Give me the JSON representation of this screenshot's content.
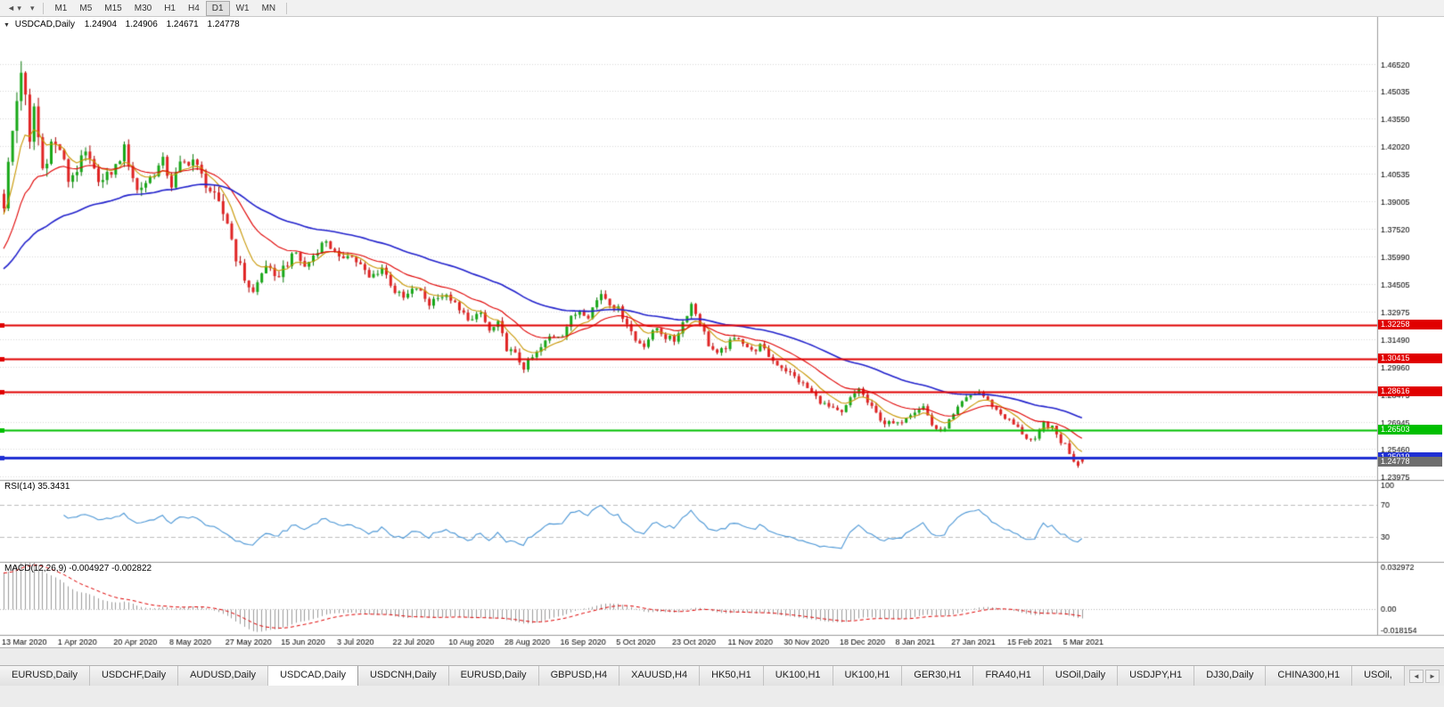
{
  "toolbar": {
    "icon1_label": "◄ ▾",
    "icon2_label": "▾",
    "timeframes": [
      "M1",
      "M5",
      "M15",
      "M30",
      "H1",
      "H4",
      "D1",
      "W1",
      "MN"
    ],
    "active_timeframe": "D1"
  },
  "chart_header": {
    "collapse_glyph": "▼",
    "symbol": "USDCAD,Daily",
    "ohlc": "1.24904 1.24906 1.24671 1.24778"
  },
  "rsi_header": "RSI(14) 35.3431",
  "macd_header": "MACD(12,26,9) -0.004927 -0.002822",
  "chart_data": {
    "type": "candlestick",
    "title": "USDCAD,Daily",
    "last_close": 1.24778,
    "last_bar": {
      "open": 1.24904,
      "high": 1.24906,
      "low": 1.24671,
      "close": 1.24778
    },
    "y_ticks": [
      "1.46520",
      "1.45035",
      "1.43550",
      "1.42020",
      "1.40535",
      "1.39005",
      "1.37520",
      "1.35990",
      "1.34505",
      "1.32975",
      "1.31490",
      "1.29960",
      "1.28475",
      "1.26945",
      "1.25460",
      "1.23975"
    ],
    "x_labels": [
      "13 Mar 2020",
      "1 Apr 2020",
      "20 Apr 2020",
      "8 May 2020",
      "27 May 2020",
      "15 Jun 2020",
      "3 Jul 2020",
      "22 Jul 2020",
      "10 Aug 2020",
      "28 Aug 2020",
      "16 Sep 2020",
      "5 Oct 2020",
      "23 Oct 2020",
      "11 Nov 2020",
      "30 Nov 2020",
      "18 Dec 2020",
      "8 Jan 2021",
      "27 Jan 2021",
      "15 Feb 2021",
      "5 Mar 2021"
    ],
    "candles_per_label": 13,
    "candle_count": 252,
    "close_anchors": [
      [
        0,
        1.39
      ],
      [
        2,
        1.428
      ],
      [
        4,
        1.463
      ],
      [
        5,
        1.445
      ],
      [
        6,
        1.42
      ],
      [
        7,
        1.442
      ],
      [
        9,
        1.408
      ],
      [
        11,
        1.422
      ],
      [
        13,
        1.419
      ],
      [
        15,
        1.402
      ],
      [
        17,
        1.408
      ],
      [
        19,
        1.416
      ],
      [
        21,
        1.406
      ],
      [
        23,
        1.401
      ],
      [
        26,
        1.409
      ],
      [
        28,
        1.419
      ],
      [
        31,
        1.396
      ],
      [
        34,
        1.403
      ],
      [
        37,
        1.412
      ],
      [
        39,
        1.399
      ],
      [
        41,
        1.41
      ],
      [
        44,
        1.413
      ],
      [
        46,
        1.404
      ],
      [
        49,
        1.392
      ],
      [
        52,
        1.379
      ],
      [
        54,
        1.36
      ],
      [
        56,
        1.348
      ],
      [
        58,
        1.34
      ],
      [
        61,
        1.356
      ],
      [
        63,
        1.347
      ],
      [
        65,
        1.354
      ],
      [
        68,
        1.362
      ],
      [
        70,
        1.354
      ],
      [
        73,
        1.364
      ],
      [
        75,
        1.369
      ],
      [
        78,
        1.358
      ],
      [
        80,
        1.362
      ],
      [
        83,
        1.355
      ],
      [
        85,
        1.348
      ],
      [
        88,
        1.354
      ],
      [
        91,
        1.341
      ],
      [
        93,
        1.337
      ],
      [
        96,
        1.343
      ],
      [
        99,
        1.334
      ],
      [
        101,
        1.339
      ],
      [
        104,
        1.337
      ],
      [
        106,
        1.33
      ],
      [
        109,
        1.325
      ],
      [
        111,
        1.329
      ],
      [
        113,
        1.319
      ],
      [
        115,
        1.323
      ],
      [
        117,
        1.31
      ],
      [
        119,
        1.306
      ],
      [
        121,
        1.2995
      ],
      [
        124,
        1.307
      ],
      [
        127,
        1.316
      ],
      [
        130,
        1.318
      ],
      [
        132,
        1.326
      ],
      [
        134,
        1.331
      ],
      [
        136,
        1.328
      ],
      [
        139,
        1.34
      ],
      [
        141,
        1.335
      ],
      [
        143,
        1.331
      ],
      [
        145,
        1.324
      ],
      [
        147,
        1.314
      ],
      [
        149,
        1.312
      ],
      [
        152,
        1.321
      ],
      [
        154,
        1.316
      ],
      [
        156,
        1.314
      ],
      [
        158,
        1.324
      ],
      [
        160,
        1.334
      ],
      [
        162,
        1.324
      ],
      [
        164,
        1.312
      ],
      [
        166,
        1.306
      ],
      [
        169,
        1.313
      ],
      [
        171,
        1.316
      ],
      [
        174,
        1.308
      ],
      [
        176,
        1.311
      ],
      [
        179,
        1.303
      ],
      [
        182,
        1.298
      ],
      [
        184,
        1.294
      ],
      [
        187,
        1.288
      ],
      [
        189,
        1.283
      ],
      [
        191,
        1.279
      ],
      [
        193,
        1.276
      ],
      [
        195,
        1.274
      ],
      [
        197,
        1.282
      ],
      [
        199,
        1.288
      ],
      [
        201,
        1.28
      ],
      [
        203,
        1.274
      ],
      [
        205,
        1.269
      ],
      [
        208,
        1.268
      ],
      [
        210,
        1.273
      ],
      [
        212,
        1.276
      ],
      [
        214,
        1.278
      ],
      [
        216,
        1.268
      ],
      [
        218,
        1.264
      ],
      [
        221,
        1.273
      ],
      [
        223,
        1.28
      ],
      [
        225,
        1.284
      ],
      [
        227,
        1.286
      ],
      [
        229,
        1.281
      ],
      [
        231,
        1.276
      ],
      [
        234,
        1.27
      ],
      [
        236,
        1.266
      ],
      [
        238,
        1.261
      ],
      [
        240,
        1.259
      ],
      [
        242,
        1.269
      ],
      [
        244,
        1.266
      ],
      [
        246,
        1.259
      ],
      [
        247,
        1.257
      ],
      [
        248,
        1.253
      ],
      [
        249,
        1.249
      ],
      [
        250,
        1.2465
      ],
      [
        251,
        1.2478
      ]
    ],
    "volatility_anchors": [
      [
        0,
        0.013
      ],
      [
        6,
        0.012
      ],
      [
        12,
        0.009
      ],
      [
        20,
        0.007
      ],
      [
        30,
        0.006
      ],
      [
        45,
        0.006
      ],
      [
        52,
        0.0075
      ],
      [
        58,
        0.006
      ],
      [
        70,
        0.005
      ],
      [
        90,
        0.0045
      ],
      [
        110,
        0.004
      ],
      [
        130,
        0.0045
      ],
      [
        150,
        0.004
      ],
      [
        170,
        0.0038
      ],
      [
        190,
        0.0035
      ],
      [
        210,
        0.0035
      ],
      [
        230,
        0.003
      ],
      [
        244,
        0.0035
      ],
      [
        251,
        0.0045
      ]
    ],
    "up_color": "#18A818",
    "up_edge": "#0B7A0B",
    "down_color": "#E02424",
    "down_edge": "#A80000",
    "moving_averages": [
      {
        "name": "ma-fast",
        "period": 8,
        "seed": 1.382,
        "color": "#C89600"
      },
      {
        "name": "ma-mid",
        "period": 20,
        "seed": 1.362,
        "color": "#E00000"
      },
      {
        "name": "ma-slow",
        "period": 55,
        "seed": 1.352,
        "color": "#2121CC"
      }
    ],
    "h_lines": [
      {
        "price": 1.32258,
        "label": "1.32258",
        "color": "#E00000",
        "width": 2
      },
      {
        "price": 1.30415,
        "label": "1.30415",
        "color": "#E00000",
        "width": 2
      },
      {
        "price": 1.28616,
        "label": "1.28616",
        "color": "#E00000",
        "width": 2
      },
      {
        "price": 1.26503,
        "label": "1.26503",
        "color": "#00BF00",
        "width": 2
      },
      {
        "price": 1.25019,
        "label": "1.25019",
        "color": "#1F2FD4",
        "width": 3
      }
    ],
    "current_tag": {
      "price": 1.24778,
      "label": "1.24778",
      "color": "#6E6E6E"
    },
    "rsi": {
      "period": 14,
      "levels": [
        70,
        30
      ],
      "axis_labels": [
        {
          "v": 100,
          "t": "100"
        },
        {
          "v": 70,
          "t": "70"
        },
        {
          "v": 30,
          "t": "30"
        }
      ],
      "color": "#4C97D6",
      "last_value": 35.3431
    },
    "macd": {
      "fast": 12,
      "slow": 26,
      "signal": 9,
      "seed_fast": 1.372,
      "seed_slow": 1.346,
      "range": [
        -0.018154,
        0.032972
      ],
      "axis_labels": [
        {
          "v": 0.032972,
          "t": "0.032972"
        },
        {
          "v": 0,
          "t": "0.00"
        },
        {
          "v": -0.018154,
          "t": "-0.018154"
        }
      ],
      "histogram_color": "#9B9B9B",
      "signal_color": "#E00000",
      "values_text": "-0.004927 -0.002822"
    }
  },
  "tab_bar": {
    "tabs": [
      "EURUSD,Daily",
      "USDCHF,Daily",
      "AUDUSD,Daily",
      "USDCAD,Daily",
      "USDCNH,Daily",
      "EURUSD,Daily",
      "GBPUSD,H4",
      "XAUUSD,H4",
      "HK50,H1",
      "UK100,H1",
      "UK100,H1",
      "GER30,H1",
      "FRA40,H1",
      "USOil,Daily",
      "USDJPY,H1",
      "DJ30,Daily",
      "CHINA300,H1",
      "USOil,"
    ],
    "active_index": 3,
    "scroll_left": "◄",
    "scroll_right": "►"
  }
}
